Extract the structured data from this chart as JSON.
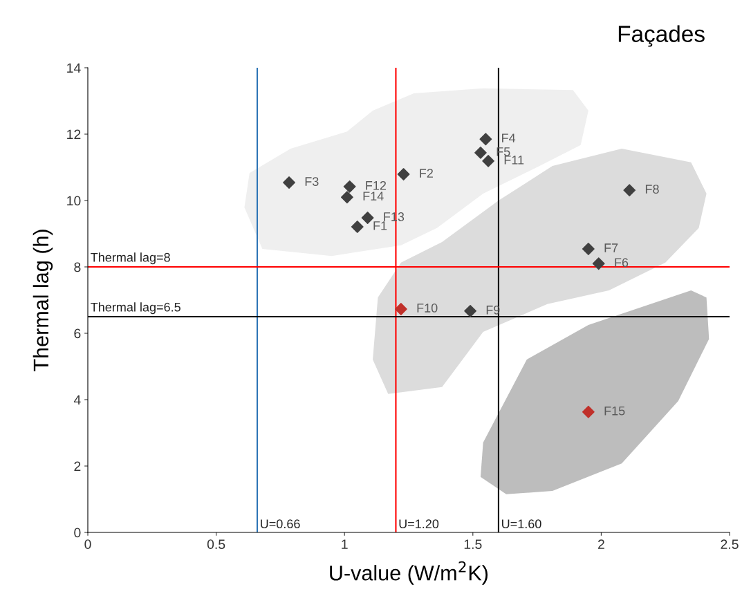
{
  "chart_data": {
    "type": "scatter",
    "title": "Façades",
    "xlabel": "U-value (W/m$^{2}$K)",
    "ylabel": "Thermal lag (h)",
    "xlim": [
      0,
      2.5
    ],
    "ylim": [
      0,
      14
    ],
    "xticks": [
      0,
      0.5,
      1,
      1.5,
      2,
      2.5
    ],
    "yticks": [
      0,
      2,
      4,
      6,
      8,
      10,
      12,
      14
    ],
    "grid": false,
    "legend": false,
    "marker": "diamond",
    "series": [
      {
        "color": "#404040",
        "x": [
          1.05,
          1.23,
          0.784,
          1.55,
          1.53,
          1.99,
          1.95,
          2.11,
          1.49,
          1.56,
          1.02,
          1.09,
          1.01
        ],
        "values": [
          9.21,
          10.79,
          10.54,
          11.85,
          11.44,
          8.1,
          8.54,
          10.31,
          6.67,
          11.19,
          10.42,
          9.48,
          10.1
        ]
      },
      {
        "color": "#c0302a",
        "x": [
          1.22,
          1.95
        ],
        "values": [
          6.73,
          3.63
        ]
      }
    ],
    "ref_lines": [
      {
        "axis": "x",
        "value": 0.66,
        "label": "U=0.66",
        "color": "#2e75b6"
      },
      {
        "axis": "x",
        "value": 1.2,
        "label": "U=1.20",
        "color": "#ff0000"
      },
      {
        "axis": "x",
        "value": 1.6,
        "label": "U=1.60",
        "color": "#000000"
      },
      {
        "axis": "y",
        "value": 8,
        "label": "Thermal lag=8",
        "color": "#ff0000"
      },
      {
        "axis": "y",
        "value": 6.5,
        "label": "Thermal lag=6.5",
        "color": "#000000"
      }
    ],
    "annotations": [
      {
        "text": "F1",
        "x": 1.05,
        "y": 9.21
      },
      {
        "text": "F2",
        "x": 1.23,
        "y": 10.79
      },
      {
        "text": "F3",
        "x": 0.784,
        "y": 10.54
      },
      {
        "text": "F4",
        "x": 1.55,
        "y": 11.85
      },
      {
        "text": "F5",
        "x": 1.53,
        "y": 11.44
      },
      {
        "text": "F6",
        "x": 1.99,
        "y": 8.1
      },
      {
        "text": "F7",
        "x": 1.95,
        "y": 8.54
      },
      {
        "text": "F8",
        "x": 2.11,
        "y": 10.31
      },
      {
        "text": "F9",
        "x": 1.49,
        "y": 6.67
      },
      {
        "text": "F10",
        "x": 1.22,
        "y": 6.73
      },
      {
        "text": "F11",
        "x": 1.56,
        "y": 11.19
      },
      {
        "text": "F12",
        "x": 1.02,
        "y": 10.42
      },
      {
        "text": "F13",
        "x": 1.09,
        "y": 9.48
      },
      {
        "text": "F14",
        "x": 1.01,
        "y": 10.1
      },
      {
        "text": "F15",
        "x": 1.95,
        "y": 3.63
      }
    ]
  }
}
